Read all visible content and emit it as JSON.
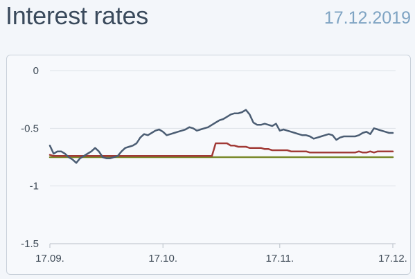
{
  "header": {
    "title": "Interest rates",
    "date": "17.12.2019"
  },
  "chart_data": {
    "type": "line",
    "title": "Interest rates",
    "xlabel": "",
    "ylabel": "",
    "ylim": [
      -1.5,
      0
    ],
    "yticks": [
      0,
      -0.5,
      -1,
      -1.5
    ],
    "ytick_labels": [
      "0",
      "-0.5",
      "-1",
      "-1.5"
    ],
    "xlim": [
      0,
      91
    ],
    "xticks": [
      0,
      30,
      61,
      91
    ],
    "xtick_labels": [
      "17.09.",
      "17.10.",
      "17.11.",
      "17.12."
    ],
    "grid": true,
    "legend": "none",
    "series": [
      {
        "color": "#4b5d73",
        "x": [
          0,
          1,
          2,
          3,
          4,
          5,
          6,
          7,
          8,
          9,
          10,
          11,
          12,
          13,
          14,
          15,
          16,
          17,
          18,
          19,
          20,
          21,
          22,
          23,
          24,
          25,
          26,
          27,
          28,
          29,
          30,
          31,
          32,
          33,
          34,
          35,
          36,
          37,
          38,
          39,
          40,
          41,
          42,
          43,
          44,
          45,
          46,
          47,
          48,
          49,
          50,
          51,
          52,
          53,
          54,
          55,
          56,
          57,
          58,
          59,
          60,
          61,
          62,
          63,
          64,
          65,
          66,
          67,
          68,
          69,
          70,
          71,
          72,
          73,
          74,
          75,
          76,
          77,
          78,
          79,
          80,
          81,
          82,
          83,
          84,
          85,
          86,
          87,
          88,
          89,
          90,
          91
        ],
        "y": [
          -0.65,
          -0.72,
          -0.7,
          -0.7,
          -0.72,
          -0.75,
          -0.77,
          -0.8,
          -0.76,
          -0.74,
          -0.72,
          -0.7,
          -0.67,
          -0.7,
          -0.75,
          -0.76,
          -0.76,
          -0.75,
          -0.74,
          -0.7,
          -0.67,
          -0.66,
          -0.65,
          -0.63,
          -0.58,
          -0.55,
          -0.56,
          -0.54,
          -0.52,
          -0.51,
          -0.53,
          -0.56,
          -0.55,
          -0.54,
          -0.53,
          -0.52,
          -0.51,
          -0.49,
          -0.5,
          -0.52,
          -0.51,
          -0.5,
          -0.49,
          -0.47,
          -0.45,
          -0.43,
          -0.42,
          -0.4,
          -0.38,
          -0.37,
          -0.37,
          -0.36,
          -0.34,
          -0.38,
          -0.45,
          -0.47,
          -0.47,
          -0.46,
          -0.47,
          -0.48,
          -0.46,
          -0.52,
          -0.51,
          -0.52,
          -0.53,
          -0.54,
          -0.55,
          -0.56,
          -0.56,
          -0.57,
          -0.59,
          -0.58,
          -0.57,
          -0.56,
          -0.55,
          -0.56,
          -0.6,
          -0.58,
          -0.57,
          -0.57,
          -0.57,
          -0.57,
          -0.56,
          -0.54,
          -0.53,
          -0.55,
          -0.5,
          -0.51,
          -0.52,
          -0.53,
          -0.54,
          -0.54
        ]
      },
      {
        "color": "#a13a36",
        "x": [
          0,
          1,
          2,
          3,
          4,
          5,
          6,
          7,
          8,
          9,
          10,
          11,
          12,
          13,
          14,
          15,
          16,
          17,
          18,
          19,
          20,
          21,
          22,
          23,
          24,
          25,
          26,
          27,
          28,
          29,
          30,
          31,
          32,
          33,
          34,
          35,
          36,
          37,
          38,
          39,
          40,
          41,
          42,
          43,
          44,
          45,
          46,
          47,
          48,
          49,
          50,
          51,
          52,
          53,
          54,
          55,
          56,
          57,
          58,
          59,
          60,
          61,
          62,
          63,
          64,
          65,
          66,
          67,
          68,
          69,
          70,
          71,
          72,
          73,
          74,
          75,
          76,
          77,
          78,
          79,
          80,
          81,
          82,
          83,
          84,
          85,
          86,
          87,
          88,
          89,
          90,
          91
        ],
        "y": [
          -0.73,
          -0.74,
          -0.74,
          -0.74,
          -0.74,
          -0.74,
          -0.74,
          -0.74,
          -0.74,
          -0.74,
          -0.74,
          -0.74,
          -0.74,
          -0.74,
          -0.74,
          -0.74,
          -0.74,
          -0.74,
          -0.74,
          -0.74,
          -0.74,
          -0.74,
          -0.74,
          -0.74,
          -0.74,
          -0.74,
          -0.74,
          -0.74,
          -0.74,
          -0.74,
          -0.74,
          -0.74,
          -0.74,
          -0.74,
          -0.74,
          -0.74,
          -0.74,
          -0.74,
          -0.74,
          -0.74,
          -0.74,
          -0.74,
          -0.74,
          -0.74,
          -0.63,
          -0.63,
          -0.63,
          -0.63,
          -0.65,
          -0.65,
          -0.66,
          -0.66,
          -0.66,
          -0.67,
          -0.67,
          -0.67,
          -0.67,
          -0.68,
          -0.68,
          -0.69,
          -0.69,
          -0.69,
          -0.69,
          -0.69,
          -0.7,
          -0.7,
          -0.7,
          -0.7,
          -0.7,
          -0.71,
          -0.71,
          -0.71,
          -0.71,
          -0.71,
          -0.71,
          -0.71,
          -0.71,
          -0.71,
          -0.71,
          -0.71,
          -0.71,
          -0.71,
          -0.7,
          -0.71,
          -0.71,
          -0.7,
          -0.71,
          -0.7,
          -0.7,
          -0.7,
          -0.7,
          -0.7
        ]
      },
      {
        "color": "#7a8a2c",
        "x": [
          0,
          91
        ],
        "y": [
          -0.75,
          -0.75
        ]
      }
    ]
  }
}
